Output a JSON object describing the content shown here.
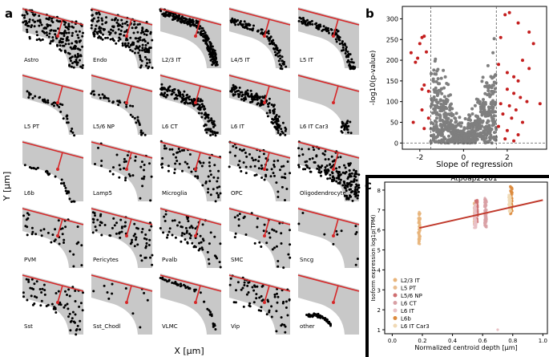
{
  "panel_a": {
    "letter": "a",
    "xlabel": "X [μm]",
    "ylabel": "Y [μm]",
    "cell_types": [
      {
        "label": "Astro",
        "pattern": "scatter",
        "density": "high"
      },
      {
        "label": "Endo",
        "pattern": "scatter",
        "density": "high"
      },
      {
        "label": "L2/3 IT",
        "pattern": "band-top"
      },
      {
        "label": "L4/5 IT",
        "pattern": "band-mid"
      },
      {
        "label": "L5 IT",
        "pattern": "band-mid"
      },
      {
        "label": "L5 PT",
        "pattern": "band-lower-sparse"
      },
      {
        "label": "L5/6 NP",
        "pattern": "band-lower-sparse"
      },
      {
        "label": "L6 CT",
        "pattern": "band-deep"
      },
      {
        "label": "L6 IT",
        "pattern": "band-deep"
      },
      {
        "label": "L6 IT Car3",
        "pattern": "corner"
      },
      {
        "label": "L6b",
        "pattern": "band-bottom"
      },
      {
        "label": "Lamp5",
        "pattern": "scatter",
        "density": "low"
      },
      {
        "label": "Microglia",
        "pattern": "scatter",
        "density": "mid"
      },
      {
        "label": "OPC",
        "pattern": "scatter",
        "density": "mid"
      },
      {
        "label": "Oligodendrocyte",
        "pattern": "scatter-deep",
        "density": "high"
      },
      {
        "label": "PVM",
        "pattern": "scatter",
        "density": "low"
      },
      {
        "label": "Pericytes",
        "pattern": "scatter",
        "density": "mid"
      },
      {
        "label": "Pvalb",
        "pattern": "scatter",
        "density": "mid"
      },
      {
        "label": "SMC",
        "pattern": "scatter",
        "density": "low"
      },
      {
        "label": "Sncg",
        "pattern": "scatter",
        "density": "vlow"
      },
      {
        "label": "Sst",
        "pattern": "scatter",
        "density": "mid"
      },
      {
        "label": "Sst_Chodl",
        "pattern": "scatter",
        "density": "vlow"
      },
      {
        "label": "VLMC",
        "pattern": "top-edge"
      },
      {
        "label": "Vip",
        "pattern": "scatter",
        "density": "mid"
      },
      {
        "label": "other",
        "pattern": "corner-curve"
      }
    ]
  },
  "chart_data": [
    {
      "type": "scatter",
      "panel": "b",
      "title": "",
      "xlabel": "Slope of regression",
      "ylabel": "-log10(p-value)",
      "xlim": [
        -2.8,
        3.8
      ],
      "ylim": [
        -15,
        330
      ],
      "xticks": [
        "-2",
        "0",
        "2"
      ],
      "xtick_values": [
        -2,
        0,
        2
      ],
      "yticks": [
        "0",
        "50",
        "100",
        "150",
        "200",
        "250",
        "300"
      ],
      "ytick_values": [
        0,
        50,
        100,
        150,
        200,
        250,
        300
      ],
      "thresholds": {
        "x": [
          -1.5,
          1.5
        ],
        "y": [
          0
        ]
      },
      "significant_points": [
        {
          "x": -2.4,
          "y": 218
        },
        {
          "x": -2.2,
          "y": 195
        },
        {
          "x": -2.0,
          "y": 240
        },
        {
          "x": -1.9,
          "y": 255
        },
        {
          "x": -1.8,
          "y": 258
        },
        {
          "x": -2.1,
          "y": 205
        },
        {
          "x": -1.7,
          "y": 220
        },
        {
          "x": -1.8,
          "y": 140
        },
        {
          "x": -1.9,
          "y": 130
        },
        {
          "x": -1.6,
          "y": 125
        },
        {
          "x": -2.3,
          "y": 50
        },
        {
          "x": -1.8,
          "y": 35
        },
        {
          "x": -1.6,
          "y": 60
        },
        {
          "x": -1.9,
          "y": 80
        },
        {
          "x": 1.9,
          "y": 310
        },
        {
          "x": 2.1,
          "y": 315
        },
        {
          "x": 2.5,
          "y": 290
        },
        {
          "x": 3.0,
          "y": 268
        },
        {
          "x": 3.2,
          "y": 240
        },
        {
          "x": 1.7,
          "y": 255
        },
        {
          "x": 2.7,
          "y": 200
        },
        {
          "x": 3.0,
          "y": 180
        },
        {
          "x": 1.6,
          "y": 190
        },
        {
          "x": 2.0,
          "y": 170
        },
        {
          "x": 2.3,
          "y": 160
        },
        {
          "x": 2.5,
          "y": 150
        },
        {
          "x": 2.0,
          "y": 130
        },
        {
          "x": 2.3,
          "y": 120
        },
        {
          "x": 2.6,
          "y": 110
        },
        {
          "x": 2.9,
          "y": 100
        },
        {
          "x": 1.7,
          "y": 95
        },
        {
          "x": 2.1,
          "y": 90
        },
        {
          "x": 3.5,
          "y": 95
        },
        {
          "x": 2.4,
          "y": 80
        },
        {
          "x": 1.8,
          "y": 70
        },
        {
          "x": 2.2,
          "y": 60
        },
        {
          "x": 2.7,
          "y": 50
        },
        {
          "x": 1.6,
          "y": 40
        },
        {
          "x": 2.0,
          "y": 30
        },
        {
          "x": 2.5,
          "y": 20
        },
        {
          "x": 1.9,
          "y": 10
        },
        {
          "x": 2.3,
          "y": 5
        }
      ]
    },
    {
      "type": "scatter",
      "panel": "c",
      "title": "Atp6ap2-201",
      "xlabel": "Normalized centroid depth [μm]",
      "ylabel": "Isoform expression log1p(TPM)",
      "xlim": [
        -0.05,
        1.03
      ],
      "ylim": [
        0.8,
        8.4
      ],
      "xticks": [
        "0.0",
        "0.2",
        "0.4",
        "0.6",
        "0.8",
        "1.0"
      ],
      "xtick_values": [
        0,
        0.2,
        0.4,
        0.6,
        0.8,
        1.0
      ],
      "yticks": [
        "1",
        "2",
        "3",
        "4",
        "5",
        "6",
        "7",
        "8"
      ],
      "ytick_values": [
        1,
        2,
        3,
        4,
        5,
        6,
        7,
        8
      ],
      "regression": {
        "x": [
          0.18,
          1.0
        ],
        "y": [
          6.1,
          7.5
        ]
      },
      "groups": [
        {
          "name": "L2/3 IT",
          "x": 0.18,
          "ymin": 5.3,
          "ymax": 6.9,
          "color": "#e8b47a"
        },
        {
          "name": "L5 PT",
          "x": 0.55,
          "ymin": 6.3,
          "ymax": 7.4,
          "color": "#e9bd8f"
        },
        {
          "name": "L5/6 NP",
          "x": 0.56,
          "ymin": 6.4,
          "ymax": 7.5,
          "color": "#cf6e70"
        },
        {
          "name": "L6 CT",
          "x": 0.62,
          "ymin": 6.1,
          "ymax": 7.6,
          "color": "#d8a0a5"
        },
        {
          "name": "L6 IT",
          "x": 0.55,
          "ymin": 6.1,
          "ymax": 7.3,
          "color": "#e9c1c5"
        },
        {
          "name": "L6b",
          "x": 0.79,
          "ymin": 6.8,
          "ymax": 8.2,
          "color": "#dc8a3c"
        },
        {
          "name": "L6 IT Car3",
          "x": 0.78,
          "ymin": 6.9,
          "ymax": 7.8,
          "color": "#f0d9b5"
        }
      ],
      "outliers": [
        {
          "x": 0.7,
          "y": 1.0
        }
      ],
      "legend": [
        "L2/3 IT",
        "L5 PT",
        "L5/6 NP",
        "L6 CT",
        "L6 IT",
        "L6b",
        "L6 IT Car3"
      ]
    }
  ],
  "labels": {
    "b": "b",
    "c": "c"
  },
  "colors": {
    "tissue": "#c8c8c8",
    "cells": "#000000",
    "line": "#d62728",
    "sig": "#c41e1e",
    "nonsig": "#7f7f7f",
    "reg": "#c0392b"
  }
}
